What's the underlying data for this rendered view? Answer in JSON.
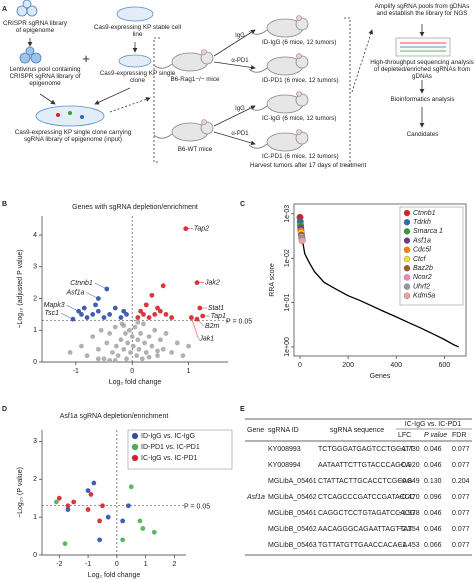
{
  "panel_labels": [
    "A",
    "B",
    "C",
    "D",
    "E"
  ],
  "diagram": {
    "library": "CRISPR sgRNA library of epigenome",
    "stable_line": "Cas9-expressing KP stable cell line",
    "lentivirus": "Lentivirus pool containing CRISPR sgRNA library of epigenome",
    "plus": "+",
    "single_clone": "Cas9-expressing KP single clone",
    "carrying": "Cas9-expressing KP single clone carrying sgRNA library of epigenome (input)",
    "rag_mice": "B6-Rag1−/− mice",
    "wt_mice": "B6-WT mice",
    "igg_1": "IgG",
    "pd1_1": "α-PD1",
    "igg_2": "IgG",
    "pd1_2": "α-PD1",
    "group_1": "ID-IgG (6 mice, 12 tumors)",
    "group_2": "ID-PD1 (6 mice, 12 tumors)",
    "group_3": "IC-IgG (6 mice, 12 tumors)",
    "group_4": "IC-PD1 (6 mice, 12 tumors)",
    "harvest": "Harvest tumors after 17 days of treatment",
    "amplify": "Amplify sgRNA pools from gDNAs and establish the library for NGS",
    "sequencing": "High-throughput sequencing analysis of depleted/enriched sgRNAs from gDNAs",
    "bioinformatics": "Bioinformatics analysis",
    "candidates": "Candidates"
  },
  "chart_data": [
    {
      "type": "scatter",
      "title": "Genes with sgRNA depletion/enrichment",
      "xlabel": "Log₂ fold change",
      "ylabel": "−Log₁₀ (adjusted P value)",
      "xlim": [
        -1.6,
        1.7
      ],
      "ylim": [
        0,
        4.6
      ],
      "xticks": [
        -1,
        0,
        1
      ],
      "yticks": [
        0,
        1,
        2,
        3,
        4
      ],
      "reference_x": 0,
      "threshold": {
        "value": 1.3,
        "label": "P = 0.05"
      },
      "series": [
        {
          "color": "#a9a9a9",
          "x": [
            -1.1,
            -0.9,
            -0.8,
            -0.7,
            -0.6,
            -0.55,
            -0.5,
            -0.45,
            -0.4,
            -0.35,
            -0.3,
            -0.28,
            -0.25,
            -0.2,
            -0.18,
            -0.15,
            -0.12,
            -0.1,
            -0.08,
            -0.05,
            -0.03,
            0,
            0.02,
            0.05,
            0.08,
            0.1,
            0.12,
            0.15,
            0.18,
            0.2,
            0.22,
            0.25,
            0.3,
            0.35,
            0.4,
            0.45,
            0.5,
            0.55,
            0.6,
            0.7,
            0.8,
            0.9,
            1.0,
            -0.6,
            -0.3,
            0.3,
            0.1,
            -0.15,
            0.45,
            -0.4
          ],
          "values": [
            0.3,
            0.5,
            0.2,
            0.8,
            0.4,
            1.0,
            0.1,
            0.6,
            0.9,
            0.3,
            1.1,
            0.5,
            0.2,
            0.7,
            1.2,
            0.4,
            0.9,
            0.1,
            0.6,
            1.0,
            0.3,
            0.8,
            0.5,
            1.1,
            0.2,
            0.7,
            0.4,
            0.9,
            0.1,
            1.2,
            0.6,
            0.3,
            0.8,
            0.5,
            1.0,
            0.2,
            0.7,
            0.4,
            0.9,
            0.3,
            0.6,
            0.2,
            0.5,
            0.1,
            0.05,
            0.15,
            1.25,
            1.15,
            0.35,
            0.05
          ]
        },
        {
          "color": "#2b4fa8",
          "x": [
            -1.05,
            -0.95,
            -0.9,
            -0.85,
            -0.8,
            -0.6,
            -0.7,
            -0.65,
            -0.6,
            -0.5,
            -0.45,
            -0.4,
            -0.3,
            -0.2,
            -0.15,
            -0.1
          ],
          "values": [
            1.35,
            1.6,
            1.5,
            1.7,
            1.4,
            2.0,
            1.5,
            1.8,
            1.6,
            1.4,
            2.3,
            1.5,
            1.7,
            1.4,
            1.6,
            1.5
          ],
          "labels": [
            "Tsc1",
            "Mapk3",
            null,
            null,
            null,
            "Asf1a",
            null,
            null,
            null,
            null,
            "Ctnnb1",
            null,
            null,
            null,
            null,
            null
          ]
        },
        {
          "color": "#d62027",
          "x": [
            0.1,
            0.15,
            0.2,
            0.25,
            0.3,
            0.35,
            0.4,
            0.45,
            0.5,
            0.55,
            0.6,
            0.7,
            0.95,
            1.15,
            1.2,
            1.25,
            1.15,
            1.05
          ],
          "values": [
            1.4,
            1.6,
            1.5,
            1.8,
            1.4,
            2.1,
            1.5,
            1.7,
            1.6,
            2.4,
            1.5,
            1.4,
            4.2,
            2.5,
            1.7,
            1.45,
            1.35,
            1.4
          ],
          "labels": [
            null,
            null,
            null,
            null,
            null,
            null,
            null,
            null,
            null,
            null,
            null,
            null,
            "Tap2",
            "Jak2",
            "Stat1",
            "Tap1",
            "B2m",
            "Jak1"
          ]
        }
      ]
    },
    {
      "type": "line",
      "ylabel": "RRA score",
      "xlabel": "Genes",
      "log_y": true,
      "xlim": [
        -25,
        690
      ],
      "ylim": [
        1.6,
        0.0006
      ],
      "xticks": [
        0,
        200,
        400,
        600
      ],
      "yticks": [
        {
          "value": 0.001,
          "label": "1e-03"
        },
        {
          "value": 0.01,
          "label": "1e-02"
        },
        {
          "value": 0.1,
          "label": "1e-01"
        },
        {
          "value": 1,
          "label": "1e+00"
        }
      ],
      "line": {
        "color": "#000000",
        "x": [
          10,
          20,
          40,
          60,
          100,
          150,
          200,
          250,
          300,
          350,
          400,
          450,
          500,
          550,
          600,
          640,
          660
        ],
        "values": [
          0.004,
          0.008,
          0.013,
          0.02,
          0.035,
          0.05,
          0.07,
          0.09,
          0.12,
          0.16,
          0.21,
          0.28,
          0.37,
          0.5,
          0.68,
          0.9,
          1.0
        ]
      },
      "legend": "upper right",
      "series": [
        {
          "name": "Ctnnb1",
          "color": "#d62027",
          "x": [
            0
          ],
          "values": [
            0.0012
          ]
        },
        {
          "name": "Tdrkh",
          "color": "#2b6cb0",
          "x": [
            1
          ],
          "values": [
            0.0015
          ]
        },
        {
          "name": "Smarca 1",
          "color": "#33a02c",
          "x": [
            2
          ],
          "values": [
            0.0018
          ]
        },
        {
          "name": "Asf1a",
          "color": "#7b3294",
          "x": [
            3
          ],
          "values": [
            0.0021
          ]
        },
        {
          "name": "Cdc5l",
          "color": "#ff7f00",
          "x": [
            4
          ],
          "values": [
            0.0024
          ]
        },
        {
          "name": "Ctcf",
          "color": "#f2e030",
          "x": [
            5
          ],
          "values": [
            0.0027
          ]
        },
        {
          "name": "Baz2b",
          "color": "#a65628",
          "x": [
            6
          ],
          "values": [
            0.003
          ]
        },
        {
          "name": "Ncor2",
          "color": "#f781bf",
          "x": [
            7
          ],
          "values": [
            0.0033
          ]
        },
        {
          "name": "Uhrf2",
          "color": "#999999",
          "x": [
            8
          ],
          "values": [
            0.0036
          ]
        },
        {
          "name": "Kdm5a",
          "color": "#e9a3a3",
          "x": [
            9
          ],
          "values": [
            0.004
          ]
        }
      ]
    },
    {
      "type": "scatter",
      "title": "Asf1a sgRNA depletion/enrichment",
      "xlabel": "Log₂ fold change",
      "ylabel": "−Log₁₀ (P value)",
      "xlim": [
        -2.6,
        2.4
      ],
      "ylim": [
        0,
        3.3
      ],
      "xticks": [
        -2,
        -1,
        0,
        1,
        2
      ],
      "yticks": [
        0,
        1,
        2,
        3
      ],
      "reference_x": 0,
      "threshold": {
        "value": 1.3,
        "label": "P = 0.05"
      },
      "legend": "upper right",
      "series": [
        {
          "name": "ID-IgG vs. IC-IgG",
          "color": "#2b4fa8",
          "x": [
            -1.0,
            -0.8,
            -1.7,
            0.2,
            -0.3,
            0.4,
            -0.6
          ],
          "values": [
            1.7,
            1.9,
            1.2,
            0.9,
            1.0,
            1.3,
            0.4
          ]
        },
        {
          "name": "ID-PD1 vs. IC-PD1",
          "color": "#4caf50",
          "x": [
            -2.1,
            -1.8,
            0.5,
            0.9,
            1.3,
            0.8,
            0.2
          ],
          "values": [
            1.4,
            0.3,
            1.8,
            0.7,
            0.6,
            0.9,
            0.4
          ]
        },
        {
          "name": "IC-IgG vs. IC-PD1",
          "color": "#d62027",
          "x": [
            -1.7,
            -2.0,
            -0.9,
            -1.5,
            -0.5,
            -0.6,
            -1.0
          ],
          "values": [
            1.3,
            1.5,
            1.6,
            1.4,
            1.3,
            0.9,
            1.2
          ]
        }
      ]
    }
  ],
  "table": {
    "header": [
      "Gene",
      "sgRNA ID",
      "sgRNA sequence"
    ],
    "group_header": "IC-IgG vs. IC-PD1",
    "subheaders": [
      "LFC",
      "P value",
      "FDR"
    ],
    "gene": "Asf1a",
    "rows": [
      [
        "KY008993",
        "TCTGGGATGAGTCCTGCATT",
        "−1.730",
        "0.046",
        "0.077"
      ],
      [
        "KY008994",
        "AATAATTCTTGTACCCAGCA",
        "−0.920",
        "0.046",
        "0.077"
      ],
      [
        "MGLibA_05461",
        "CTATTACTTGCACCTCGCAG",
        "−0.849",
        "0.130",
        "0.204"
      ],
      [
        "MGLibA_05462",
        "CTCAGCCCGATCCGATACCC",
        "−0.470",
        "0.096",
        "0.077"
      ],
      [
        "MGLibB_05461",
        "CAGGCTCCTGTAGATCCACG",
        "−1.978",
        "0.046",
        "0.077"
      ],
      [
        "MGLibB_05462",
        "AACAGGGCAGAATTAGTTAT",
        "−2.354",
        "0.046",
        "0.077"
      ],
      [
        "MGLibB_05463",
        "TGTTATGTTGAACCACACA",
        "−1.453",
        "0.066",
        "0.077"
      ]
    ]
  }
}
